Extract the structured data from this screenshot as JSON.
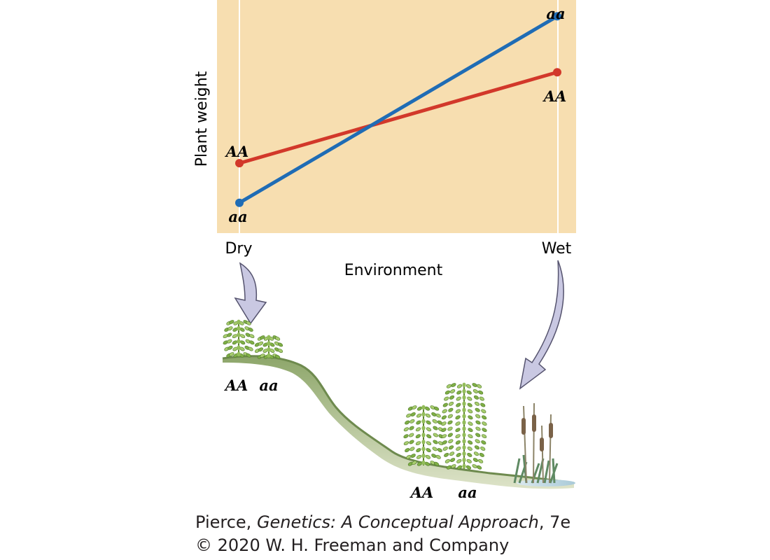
{
  "chart_data": {
    "type": "line",
    "title": "",
    "xlabel": "Environment",
    "ylabel": "Plant weight",
    "categories": [
      "Dry",
      "Wet"
    ],
    "series": [
      {
        "name": "AA",
        "values": [
          0.3,
          0.69
        ],
        "color": "#d2382a"
      },
      {
        "name": "aa",
        "values": [
          0.13,
          0.93
        ],
        "color": "#1f6cb5"
      }
    ],
    "ylim": [
      0,
      1
    ],
    "y_ticks_shown": false,
    "grid": false,
    "background": "#f7deb0"
  },
  "labels": {
    "dry_AA": "AA",
    "dry_aa": "aa",
    "wet_aa": "aa",
    "wet_AA": "AA"
  },
  "illustration": {
    "dry_plants": [
      "AA",
      "aa"
    ],
    "wet_plants": [
      "AA",
      "aa"
    ],
    "arrow_color": "#c9c8e2"
  },
  "credit": {
    "line1_author": "Pierce, ",
    "line1_title": "Genetics: A Conceptual Approach",
    "line1_edition": ", 7e",
    "line2": "© 2020 W. H. Freeman and Company"
  }
}
